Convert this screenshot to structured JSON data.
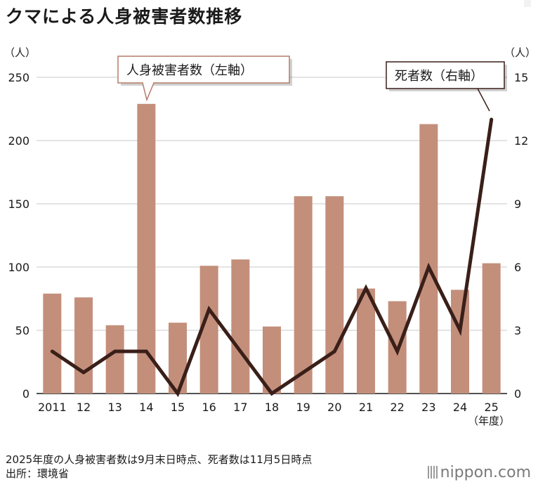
{
  "title": "クマによる人身被害者数推移",
  "left_unit": "（人）",
  "right_unit": "（人）",
  "x_unit": "（年度）",
  "left_series_label": "人身被害者数（左軸）",
  "right_series_label": "死者数（右軸）",
  "note": "2025年度の人身被害者数は9月末日時点、死者数は11月5日時点",
  "source": "出所：環境省",
  "brand": "nippon.com",
  "colors": {
    "bars": "#c38f7b",
    "line": "#3a1f19",
    "grid": "#c8c8c8"
  },
  "chart_data": {
    "type": "bar+line",
    "categories": [
      "2011",
      "12",
      "13",
      "14",
      "15",
      "16",
      "17",
      "18",
      "19",
      "20",
      "21",
      "22",
      "23",
      "24",
      "25"
    ],
    "series": [
      {
        "name": "人身被害者数（左軸）",
        "axis": "left",
        "type": "bar",
        "values": [
          79,
          76,
          54,
          229,
          56,
          101,
          106,
          53,
          156,
          156,
          83,
          73,
          213,
          82,
          103
        ]
      },
      {
        "name": "死者数（右軸）",
        "axis": "right",
        "type": "line",
        "values": [
          2,
          1,
          2,
          2,
          0,
          4,
          2,
          0,
          1,
          2,
          5,
          2,
          6,
          3,
          13
        ]
      }
    ],
    "left_axis": {
      "ylim": [
        0,
        250
      ],
      "ticks": [
        0,
        50,
        100,
        150,
        200,
        250
      ]
    },
    "right_axis": {
      "ylim": [
        0,
        15
      ],
      "ticks": [
        0,
        3,
        6,
        9,
        12,
        15
      ]
    },
    "grid": true
  }
}
